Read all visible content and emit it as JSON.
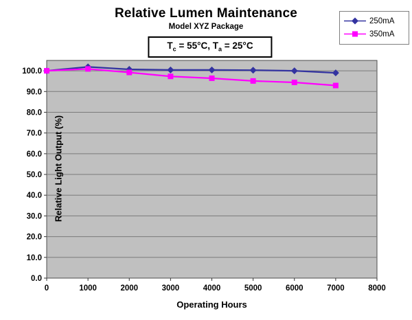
{
  "chart_data": {
    "type": "line",
    "title": "Relative Lumen Maintenance",
    "subtitle": "Model XYZ Package",
    "annotation": {
      "text": "Tc = 55°C, Ta = 25°C",
      "p1": "T",
      "s1": "c",
      "p2": " = 55°C, T",
      "s2": "a",
      "p3": " = 25°C"
    },
    "xlabel": "Operating Hours",
    "ylabel": "Relative Light Output (%)",
    "x": [
      0,
      1000,
      2000,
      3000,
      4000,
      5000,
      6000,
      7000
    ],
    "series": [
      {
        "name": "250mA",
        "marker": "diamond",
        "color": "#3333a0",
        "values": [
          100.0,
          101.9,
          100.7,
          100.4,
          100.4,
          100.3,
          100.0,
          99.0
        ]
      },
      {
        "name": "350mA",
        "marker": "square",
        "color": "#ff00ff",
        "values": [
          100.0,
          100.9,
          99.2,
          97.3,
          96.4,
          95.1,
          94.4,
          92.9
        ]
      }
    ],
    "xlim": [
      0,
      8000
    ],
    "ylim": [
      0,
      105
    ],
    "x_ticks": [
      0,
      1000,
      2000,
      3000,
      4000,
      5000,
      6000,
      7000,
      8000
    ],
    "x_tick_labels": [
      "0",
      "1000",
      "2000",
      "3000",
      "4000",
      "5000",
      "6000",
      "7000",
      "8000"
    ],
    "y_ticks": [
      0,
      10,
      20,
      30,
      40,
      50,
      60,
      70,
      80,
      90,
      100
    ],
    "y_tick_labels": [
      "0.0",
      "10.0",
      "20.0",
      "30.0",
      "40.0",
      "50.0",
      "60.0",
      "70.0",
      "80.0",
      "90.0",
      "100.0"
    ],
    "grid": "horizontal-only",
    "legend_position": "top-right",
    "plot_bg": "#c0c0c0",
    "gridline_color": "#7a7a7a",
    "border_color": "#4d4d4d",
    "tick_color": "#333333",
    "tick_label_color": "#000000"
  }
}
